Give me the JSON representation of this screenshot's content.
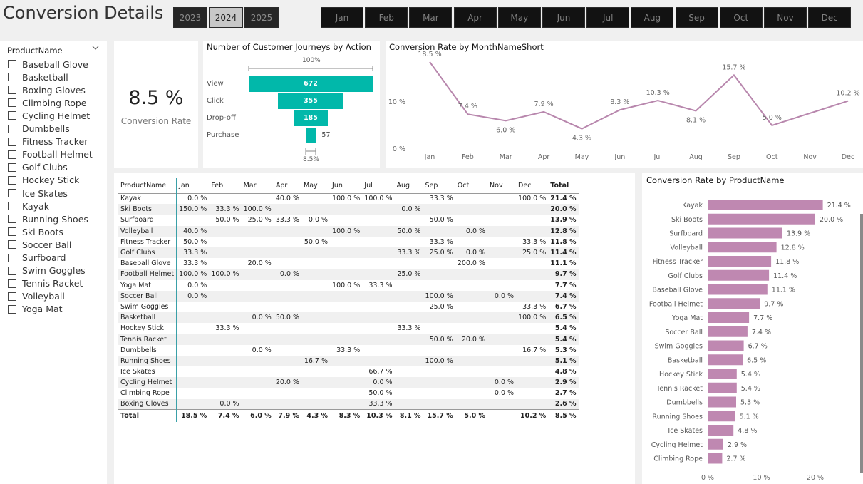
{
  "page": {
    "title": "Conversion Details",
    "years": [
      {
        "label": "2023",
        "selected": false
      },
      {
        "label": "2024",
        "selected": true
      },
      {
        "label": "2025",
        "selected": false
      }
    ],
    "months": [
      "Jan",
      "Feb",
      "Mar",
      "Apr",
      "May",
      "Jun",
      "Jul",
      "Aug",
      "Sep",
      "Oct",
      "Nov",
      "Dec"
    ]
  },
  "slicer": {
    "header": "ProductName",
    "items": [
      "Baseball Glove",
      "Basketball",
      "Boxing Gloves",
      "Climbing Rope",
      "Cycling Helmet",
      "Dumbbells",
      "Fitness Tracker",
      "Football Helmet",
      "Golf Clubs",
      "Hockey Stick",
      "Ice Skates",
      "Kayak",
      "Running Shoes",
      "Ski Boots",
      "Soccer Ball",
      "Surfboard",
      "Swim Goggles",
      "Tennis Racket",
      "Volleyball",
      "Yoga Mat"
    ]
  },
  "kpi": {
    "value": "8.5 %",
    "label": "Conversion Rate"
  },
  "colors": {
    "teal": "#01b8aa",
    "purple": "#b887ad",
    "bar": "#bf88b1",
    "dark_button": "#121212"
  },
  "chart_data": [
    {
      "type": "funnel",
      "title": "Number of Customer Journeys by Action",
      "categories": [
        "View",
        "Click",
        "Drop-off",
        "Purchase"
      ],
      "values": [
        672,
        355,
        185,
        57
      ],
      "top_label": "100%",
      "bottom_label": "8.5%"
    },
    {
      "type": "line",
      "title": "Conversion Rate by MonthNameShort",
      "x": [
        "Jan",
        "Feb",
        "Mar",
        "Apr",
        "May",
        "Jun",
        "Jul",
        "Aug",
        "Sep",
        "Oct",
        "Nov",
        "Dec"
      ],
      "y": [
        18.5,
        7.4,
        6.0,
        7.9,
        4.3,
        8.3,
        10.3,
        8.1,
        15.7,
        5.0,
        null,
        10.2
      ],
      "data_labels": [
        "18.5 %",
        "7.4 %",
        "6.0 %",
        "7.9 %",
        "4.3 %",
        "8.3 %",
        "10.3 %",
        "8.1 %",
        "15.7 %",
        "5.0 %",
        "",
        "10.2 %"
      ],
      "ylim": [
        0,
        20
      ],
      "yticks": [
        {
          "v": 0,
          "label": "0 %"
        },
        {
          "v": 10,
          "label": "10 %"
        }
      ],
      "grid": false
    },
    {
      "type": "table",
      "columns": [
        "ProductName",
        "Jan",
        "Feb",
        "Mar",
        "Apr",
        "May",
        "Jun",
        "Jul",
        "Aug",
        "Sep",
        "Oct",
        "Nov",
        "Dec",
        "Total"
      ],
      "rows": [
        [
          "Kayak",
          "0.0 %",
          "",
          "",
          "40.0 %",
          "",
          "100.0 %",
          "100.0 %",
          "",
          "33.3 %",
          "",
          "",
          "100.0 %",
          "21.4 %"
        ],
        [
          "Ski Boots",
          "150.0 %",
          "33.3 %",
          "100.0 %",
          "",
          "",
          "",
          "",
          "0.0 %",
          "",
          "",
          "",
          "",
          "20.0 %"
        ],
        [
          "Surfboard",
          "",
          "50.0 %",
          "25.0 %",
          "33.3 %",
          "0.0 %",
          "",
          "",
          "",
          "50.0 %",
          "",
          "",
          "",
          "13.9 %"
        ],
        [
          "Volleyball",
          "40.0 %",
          "",
          "",
          "",
          "",
          "100.0 %",
          "",
          "50.0 %",
          "",
          "0.0 %",
          "",
          "",
          "12.8 %"
        ],
        [
          "Fitness Tracker",
          "50.0 %",
          "",
          "",
          "",
          "50.0 %",
          "",
          "",
          "",
          "33.3 %",
          "",
          "",
          "33.3 %",
          "11.8 %"
        ],
        [
          "Golf Clubs",
          "33.3 %",
          "",
          "",
          "",
          "",
          "",
          "",
          "33.3 %",
          "25.0 %",
          "0.0 %",
          "",
          "25.0 %",
          "11.4 %"
        ],
        [
          "Baseball Glove",
          "33.3 %",
          "",
          "20.0 %",
          "",
          "",
          "",
          "",
          "",
          "",
          "200.0 %",
          "",
          "",
          "11.1 %"
        ],
        [
          "Football Helmet",
          "100.0 %",
          "100.0 %",
          "",
          "0.0 %",
          "",
          "",
          "",
          "25.0 %",
          "",
          "",
          "",
          "",
          "9.7 %"
        ],
        [
          "Yoga Mat",
          "0.0 %",
          "",
          "",
          "",
          "",
          "100.0 %",
          "33.3 %",
          "",
          "",
          "",
          "",
          "",
          "7.7 %"
        ],
        [
          "Soccer Ball",
          "0.0 %",
          "",
          "",
          "",
          "",
          "",
          "",
          "",
          "100.0 %",
          "",
          "0.0 %",
          "",
          "7.4 %"
        ],
        [
          "Swim Goggles",
          "",
          "",
          "",
          "",
          "",
          "",
          "",
          "",
          "25.0 %",
          "",
          "",
          "33.3 %",
          "6.7 %"
        ],
        [
          "Basketball",
          "",
          "",
          "0.0 %",
          "50.0 %",
          "",
          "",
          "",
          "",
          "",
          "",
          "",
          "100.0 %",
          "6.5 %"
        ],
        [
          "Hockey Stick",
          "",
          "33.3 %",
          "",
          "",
          "",
          "",
          "",
          "33.3 %",
          "",
          "",
          "",
          "",
          "5.4 %"
        ],
        [
          "Tennis Racket",
          "",
          "",
          "",
          "",
          "",
          "",
          "",
          "",
          "50.0 %",
          "20.0 %",
          "",
          "",
          "5.4 %"
        ],
        [
          "Dumbbells",
          "",
          "",
          "0.0 %",
          "",
          "",
          "33.3 %",
          "",
          "",
          "",
          "",
          "",
          "16.7 %",
          "5.3 %"
        ],
        [
          "Running Shoes",
          "",
          "",
          "",
          "",
          "16.7 %",
          "",
          "",
          "",
          "100.0 %",
          "",
          "",
          "",
          "5.1 %"
        ],
        [
          "Ice Skates",
          "",
          "",
          "",
          "",
          "",
          "",
          "66.7 %",
          "",
          "",
          "",
          "",
          "",
          "4.8 %"
        ],
        [
          "Cycling Helmet",
          "",
          "",
          "",
          "20.0 %",
          "",
          "",
          "0.0 %",
          "",
          "",
          "",
          "0.0 %",
          "",
          "2.9 %"
        ],
        [
          "Climbing Rope",
          "",
          "",
          "",
          "",
          "",
          "",
          "50.0 %",
          "",
          "",
          "",
          "0.0 %",
          "",
          "2.7 %"
        ],
        [
          "Boxing Gloves",
          "",
          "0.0 %",
          "",
          "",
          "",
          "",
          "33.3 %",
          "",
          "",
          "",
          "",
          "",
          "2.6 %"
        ]
      ],
      "totals": [
        "Total",
        "18.5 %",
        "7.4 %",
        "6.0 %",
        "7.9 %",
        "4.3 %",
        "8.3 %",
        "10.3 %",
        "8.1 %",
        "15.7 %",
        "5.0 %",
        "",
        "10.2 %",
        "8.5 %"
      ]
    },
    {
      "type": "bar",
      "orientation": "horizontal",
      "title": "Conversion Rate by ProductName",
      "categories": [
        "Kayak",
        "Ski Boots",
        "Surfboard",
        "Volleyball",
        "Fitness Tracker",
        "Golf Clubs",
        "Baseball Glove",
        "Football Helmet",
        "Yoga Mat",
        "Soccer Ball",
        "Swim Goggles",
        "Basketball",
        "Hockey Stick",
        "Tennis Racket",
        "Dumbbells",
        "Running Shoes",
        "Ice Skates",
        "Cycling Helmet",
        "Climbing Rope"
      ],
      "values": [
        21.4,
        20.0,
        13.9,
        12.8,
        11.8,
        11.4,
        11.1,
        9.7,
        7.7,
        7.4,
        6.7,
        6.5,
        5.4,
        5.4,
        5.3,
        5.1,
        4.8,
        2.9,
        2.7
      ],
      "data_labels": [
        "21.4 %",
        "20.0 %",
        "13.9 %",
        "12.8 %",
        "11.8 %",
        "11.4 %",
        "11.1 %",
        "9.7 %",
        "7.7 %",
        "7.4 %",
        "6.7 %",
        "6.5 %",
        "5.4 %",
        "5.4 %",
        "5.3 %",
        "5.1 %",
        "4.8 %",
        "2.9 %",
        "2.7 %"
      ],
      "xlim": [
        0,
        25
      ],
      "xticks": [
        {
          "v": 0,
          "label": "0 %"
        },
        {
          "v": 10,
          "label": "10 %"
        },
        {
          "v": 20,
          "label": "20 %"
        }
      ]
    }
  ]
}
